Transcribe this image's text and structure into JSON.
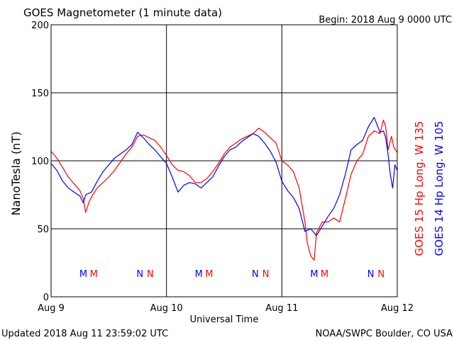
{
  "header": {
    "title": "GOES Magnetometer (1 minute data)",
    "begin": "Begin:  2018 Aug 9 0000 UTC"
  },
  "footer": {
    "updated": "Updated 2018 Aug 11 23:59:02 UTC",
    "credit": "NOAA/SWPC Boulder, CO USA"
  },
  "legend": {
    "goes15": "GOES 15 Hp  Long. W 135",
    "goes14": "GOES 14 Hp  Long. W 105"
  },
  "colors": {
    "goes15": "#ff0000",
    "goes14": "#0000ff"
  },
  "markers": [
    {
      "day": 0.28,
      "label": "M",
      "series": "goes14"
    },
    {
      "day": 0.37,
      "label": "M",
      "series": "goes15"
    },
    {
      "day": 0.77,
      "label": "N",
      "series": "goes14"
    },
    {
      "day": 0.86,
      "label": "N",
      "series": "goes15"
    },
    {
      "day": 1.28,
      "label": "M",
      "series": "goes14"
    },
    {
      "day": 1.37,
      "label": "M",
      "series": "goes15"
    },
    {
      "day": 1.77,
      "label": "N",
      "series": "goes14"
    },
    {
      "day": 1.86,
      "label": "N",
      "series": "goes15"
    },
    {
      "day": 2.28,
      "label": "M",
      "series": "goes14"
    },
    {
      "day": 2.37,
      "label": "M",
      "series": "goes15"
    },
    {
      "day": 2.77,
      "label": "N",
      "series": "goes14"
    },
    {
      "day": 2.86,
      "label": "N",
      "series": "goes15"
    }
  ],
  "chart_data": {
    "type": "line",
    "title": "GOES Magnetometer (1 minute data)",
    "xlabel": "Universal Time",
    "ylabel": "NanoTesla (nT)",
    "ylim": [
      0,
      200
    ],
    "yticks": [
      0,
      50,
      100,
      150,
      200
    ],
    "xlim": [
      0,
      3
    ],
    "xticks": [
      0,
      1,
      2,
      3
    ],
    "xtick_labels": [
      "Aug 9",
      "Aug 10",
      "Aug 11",
      "Aug 12"
    ],
    "grid": true,
    "x_unit": "days since 2018 Aug 9 0000 UTC",
    "series": [
      {
        "name": "GOES 15 Hp  Long. W 135",
        "color": "#ff0000",
        "x": [
          0,
          0.05,
          0.1,
          0.15,
          0.2,
          0.25,
          0.28,
          0.3,
          0.33,
          0.36,
          0.4,
          0.45,
          0.5,
          0.55,
          0.6,
          0.65,
          0.7,
          0.75,
          0.8,
          0.85,
          0.9,
          0.95,
          1.0,
          1.05,
          1.1,
          1.15,
          1.2,
          1.25,
          1.3,
          1.35,
          1.4,
          1.45,
          1.5,
          1.55,
          1.6,
          1.65,
          1.7,
          1.75,
          1.8,
          1.85,
          1.9,
          1.95,
          2.0,
          2.05,
          2.1,
          2.15,
          2.2,
          2.22,
          2.25,
          2.28,
          2.3,
          2.35,
          2.4,
          2.45,
          2.5,
          2.55,
          2.6,
          2.65,
          2.7,
          2.75,
          2.8,
          2.85,
          2.88,
          2.9,
          2.92,
          2.95,
          2.97,
          3.0
        ],
        "y": [
          107,
          102,
          95,
          88,
          83,
          78,
          72,
          62,
          70,
          75,
          80,
          84,
          88,
          93,
          99,
          105,
          110,
          118,
          119,
          117,
          115,
          110,
          104,
          97,
          93,
          92,
          89,
          84,
          84,
          87,
          92,
          98,
          105,
          110,
          113,
          116,
          118,
          120,
          124,
          121,
          117,
          113,
          100,
          97,
          92,
          80,
          55,
          40,
          30,
          27,
          47,
          55,
          55,
          58,
          55,
          72,
          90,
          100,
          105,
          118,
          122,
          120,
          130,
          125,
          108,
          118,
          110,
          106
        ]
      },
      {
        "name": "GOES 14 Hp  Long. W 105",
        "color": "#0000ff",
        "x": [
          0,
          0.05,
          0.1,
          0.15,
          0.2,
          0.25,
          0.28,
          0.3,
          0.35,
          0.4,
          0.45,
          0.5,
          0.55,
          0.6,
          0.65,
          0.7,
          0.75,
          0.8,
          0.85,
          0.9,
          0.95,
          1.0,
          1.05,
          1.1,
          1.15,
          1.2,
          1.25,
          1.3,
          1.35,
          1.4,
          1.45,
          1.5,
          1.55,
          1.6,
          1.65,
          1.7,
          1.75,
          1.8,
          1.85,
          1.9,
          1.95,
          2.0,
          2.05,
          2.1,
          2.15,
          2.2,
          2.25,
          2.3,
          2.35,
          2.4,
          2.45,
          2.5,
          2.55,
          2.6,
          2.65,
          2.7,
          2.75,
          2.8,
          2.85,
          2.88,
          2.9,
          2.92,
          2.94,
          2.96,
          2.98,
          3.0
        ],
        "y": [
          98,
          93,
          85,
          80,
          77,
          74,
          69,
          75,
          77,
          85,
          92,
          97,
          102,
          105,
          108,
          112,
          121,
          117,
          112,
          108,
          103,
          98,
          88,
          77,
          82,
          84,
          83,
          80,
          84,
          88,
          96,
          103,
          108,
          110,
          114,
          117,
          120,
          118,
          113,
          107,
          99,
          85,
          78,
          73,
          65,
          48,
          50,
          45,
          52,
          59,
          65,
          75,
          90,
          108,
          112,
          115,
          125,
          132,
          121,
          122,
          117,
          105,
          90,
          80,
          97,
          93
        ]
      }
    ]
  }
}
